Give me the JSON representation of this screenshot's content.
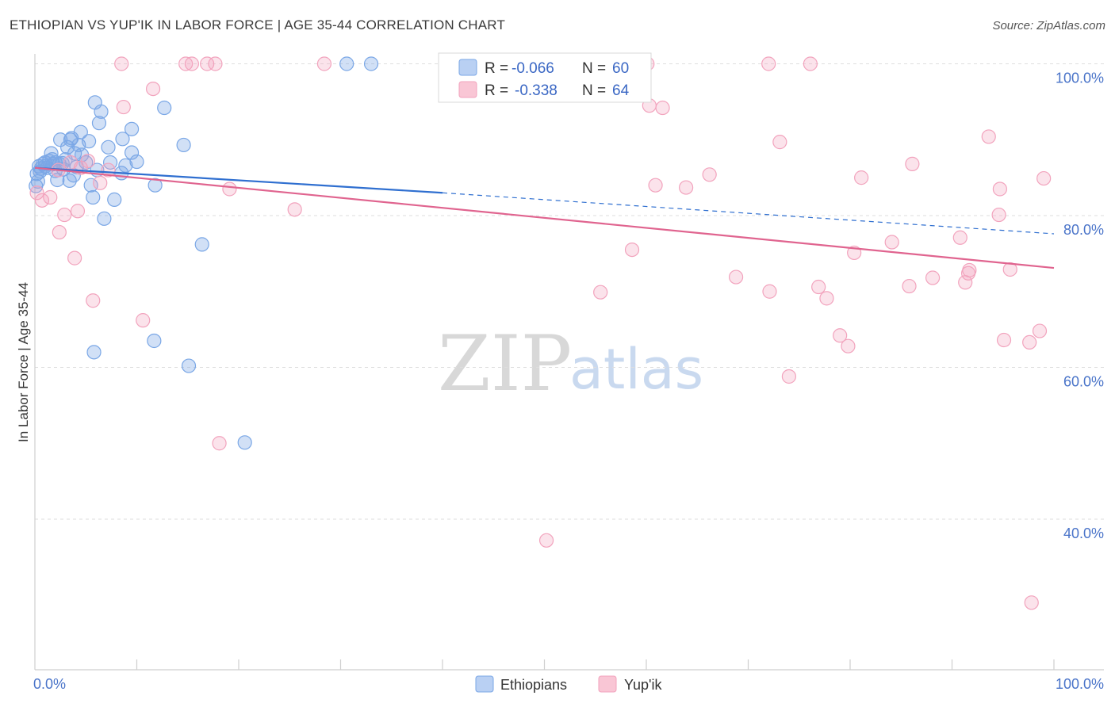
{
  "chart_data": {
    "type": "scatter",
    "title": "ETHIOPIAN VS YUP'IK IN LABOR FORCE | AGE 35-44 CORRELATION CHART",
    "source": "Source: ZipAtlas.com",
    "xlabel": "",
    "ylabel": "In Labor Force | Age 35-44",
    "xlim": [
      0,
      100
    ],
    "ylim": [
      20,
      102
    ],
    "x_tick_labels": [
      "0.0%",
      "100.0%"
    ],
    "y_ticks": [
      40,
      60,
      80,
      100
    ],
    "y_tick_labels": [
      "40.0%",
      "60.0%",
      "80.0%",
      "100.0%"
    ],
    "grid": true,
    "watermark": {
      "zip": "ZIP",
      "atlas": "atlas"
    },
    "legend": {
      "position": "top-center",
      "entries": [
        {
          "r_label": "R =",
          "r_value": "-0.066",
          "n_label": "N =",
          "n_value": "60"
        },
        {
          "r_label": "R =",
          "r_value": "-0.338",
          "n_label": "N =",
          "n_value": "64"
        }
      ]
    },
    "bottom_legend": [
      "Ethiopians",
      "Yup'ik"
    ],
    "series": [
      {
        "name": "Ethiopians",
        "color": "#7aa7e6",
        "line_color": "#2f6fd0",
        "trend": {
          "x0": 0,
          "y0": 86.3,
          "x1": 40,
          "y1": 83.0,
          "dashed_to_x": 100,
          "dashed_to_y": 77.6
        },
        "points": [
          [
            0.2,
            85.5
          ],
          [
            0.3,
            84.5
          ],
          [
            0.4,
            86.5
          ],
          [
            0.5,
            85.8
          ],
          [
            0.6,
            86.2
          ],
          [
            0.8,
            86.8
          ],
          [
            1.0,
            87.0
          ],
          [
            1.2,
            86.3
          ],
          [
            1.4,
            87.2
          ],
          [
            1.6,
            88.2
          ],
          [
            1.7,
            87.4
          ],
          [
            1.8,
            86.8
          ],
          [
            2.0,
            87.0
          ],
          [
            2.2,
            84.7
          ],
          [
            2.4,
            86.8
          ],
          [
            2.5,
            90.0
          ],
          [
            2.7,
            86.9
          ],
          [
            2.8,
            86.1
          ],
          [
            3.0,
            87.4
          ],
          [
            3.2,
            89.0
          ],
          [
            3.4,
            84.6
          ],
          [
            3.5,
            90.0
          ],
          [
            3.6,
            90.2
          ],
          [
            3.8,
            85.3
          ],
          [
            3.9,
            88.2
          ],
          [
            4.1,
            86.4
          ],
          [
            4.3,
            89.3
          ],
          [
            4.5,
            91.0
          ],
          [
            4.6,
            88.0
          ],
          [
            5.0,
            87.0
          ],
          [
            5.3,
            89.8
          ],
          [
            5.5,
            84.0
          ],
          [
            5.7,
            82.4
          ],
          [
            5.9,
            94.9
          ],
          [
            6.1,
            86.0
          ],
          [
            6.3,
            92.2
          ],
          [
            6.5,
            93.7
          ],
          [
            6.8,
            79.6
          ],
          [
            7.2,
            89.0
          ],
          [
            7.4,
            87.0
          ],
          [
            7.8,
            82.1
          ],
          [
            8.5,
            85.6
          ],
          [
            8.6,
            90.1
          ],
          [
            8.9,
            86.6
          ],
          [
            9.5,
            91.4
          ],
          [
            9.5,
            88.3
          ],
          [
            10.0,
            87.1
          ],
          [
            11.8,
            84.0
          ],
          [
            12.7,
            94.2
          ],
          [
            14.6,
            89.3
          ],
          [
            16.4,
            76.2
          ],
          [
            5.8,
            62.0
          ],
          [
            11.7,
            63.5
          ],
          [
            15.1,
            60.2
          ],
          [
            20.6,
            50.1
          ],
          [
            30.6,
            100.0
          ],
          [
            33.0,
            100.0
          ],
          [
            1.0,
            86.5
          ],
          [
            2.0,
            85.9
          ],
          [
            0.1,
            83.9
          ]
        ]
      },
      {
        "name": "Yup'ik",
        "color": "#f2a3bd",
        "line_color": "#e0648f",
        "trend": {
          "x0": 0,
          "y0": 86.3,
          "x1": 100,
          "y1": 73.1
        },
        "points": [
          [
            0.2,
            83.0
          ],
          [
            0.7,
            82.0
          ],
          [
            1.5,
            82.4
          ],
          [
            2.3,
            86.0
          ],
          [
            2.4,
            77.8
          ],
          [
            2.9,
            80.1
          ],
          [
            3.5,
            87.0
          ],
          [
            3.9,
            74.4
          ],
          [
            4.2,
            80.6
          ],
          [
            4.5,
            86.3
          ],
          [
            5.2,
            87.2
          ],
          [
            5.7,
            68.8
          ],
          [
            6.4,
            84.3
          ],
          [
            7.2,
            86.0
          ],
          [
            8.5,
            100.0
          ],
          [
            8.7,
            94.3
          ],
          [
            10.6,
            66.2
          ],
          [
            11.6,
            96.7
          ],
          [
            14.8,
            100.0
          ],
          [
            15.4,
            100.0
          ],
          [
            16.9,
            100.0
          ],
          [
            17.7,
            100.0
          ],
          [
            18.1,
            50.0
          ],
          [
            19.1,
            83.5
          ],
          [
            25.5,
            80.8
          ],
          [
            28.4,
            100.0
          ],
          [
            50.2,
            37.2
          ],
          [
            55.5,
            69.9
          ],
          [
            58.6,
            75.5
          ],
          [
            60.1,
            100.0
          ],
          [
            60.3,
            94.5
          ],
          [
            60.9,
            84.0
          ],
          [
            61.6,
            94.2
          ],
          [
            63.9,
            83.7
          ],
          [
            66.2,
            85.4
          ],
          [
            68.8,
            71.9
          ],
          [
            72.0,
            100.0
          ],
          [
            72.1,
            70.0
          ],
          [
            73.1,
            89.7
          ],
          [
            74.0,
            58.8
          ],
          [
            76.1,
            100.0
          ],
          [
            76.9,
            70.6
          ],
          [
            77.7,
            69.1
          ],
          [
            79.0,
            64.2
          ],
          [
            79.8,
            62.8
          ],
          [
            80.4,
            75.1
          ],
          [
            81.1,
            85.0
          ],
          [
            84.1,
            76.5
          ],
          [
            85.8,
            70.7
          ],
          [
            86.1,
            86.8
          ],
          [
            88.1,
            71.8
          ],
          [
            90.8,
            77.1
          ],
          [
            91.3,
            71.2
          ],
          [
            91.6,
            72.4
          ],
          [
            93.6,
            90.4
          ],
          [
            94.6,
            80.1
          ],
          [
            94.7,
            83.5
          ],
          [
            95.1,
            63.6
          ],
          [
            95.7,
            72.9
          ],
          [
            97.6,
            63.3
          ],
          [
            97.8,
            29.0
          ],
          [
            98.6,
            64.8
          ],
          [
            99.0,
            84.9
          ],
          [
            91.7,
            72.8
          ]
        ]
      }
    ]
  }
}
